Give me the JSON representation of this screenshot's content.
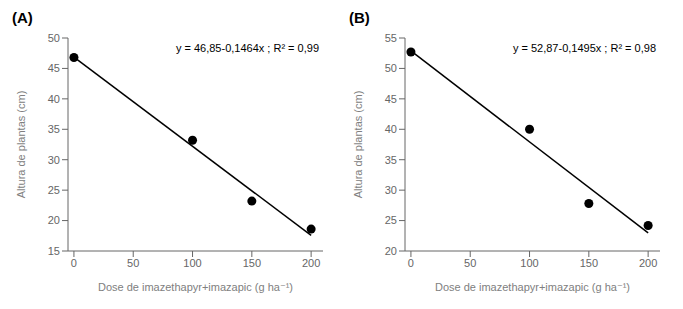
{
  "chart_data": [
    {
      "type": "scatter",
      "title": "(A)",
      "annotations": [
        "y = 46,85-0,1464x ; R² = 0,99"
      ],
      "xlabel": "Dose de imazethapyr+imazapic (g ha⁻¹)",
      "ylabel": "Altura de plantas (cm)",
      "xlim": [
        -5,
        210
      ],
      "xticks": [
        0,
        50,
        100,
        150,
        200
      ],
      "ylim": [
        15,
        50
      ],
      "yticks": [
        15,
        20,
        25,
        30,
        35,
        40,
        45,
        50
      ],
      "grid": false,
      "series": [
        {
          "type": "line",
          "color": "#000000",
          "x": [
            0,
            200
          ],
          "values": [
            46.85,
            17.57
          ]
        },
        {
          "type": "scatter",
          "color": "#000000",
          "x": [
            0,
            100,
            150,
            200
          ],
          "values": [
            46.8,
            33.2,
            23.2,
            18.6
          ]
        }
      ]
    },
    {
      "type": "scatter",
      "title": "(B)",
      "annotations": [
        "y = 52,87-0,1495x ; R² = 0,98"
      ],
      "xlabel": "Dose de imazethapyr+imazapic (g ha⁻¹)",
      "ylabel": "Altura de plantas (cm)",
      "xlim": [
        -5,
        210
      ],
      "xticks": [
        0,
        50,
        100,
        150,
        200
      ],
      "ylim": [
        20,
        55
      ],
      "yticks": [
        20,
        25,
        30,
        35,
        40,
        45,
        50,
        55
      ],
      "grid": false,
      "series": [
        {
          "type": "line",
          "color": "#000000",
          "x": [
            0,
            200
          ],
          "values": [
            52.87,
            22.97
          ]
        },
        {
          "type": "scatter",
          "color": "#000000",
          "x": [
            0,
            100,
            150,
            200
          ],
          "values": [
            52.7,
            40.0,
            27.8,
            24.2
          ]
        }
      ]
    }
  ]
}
